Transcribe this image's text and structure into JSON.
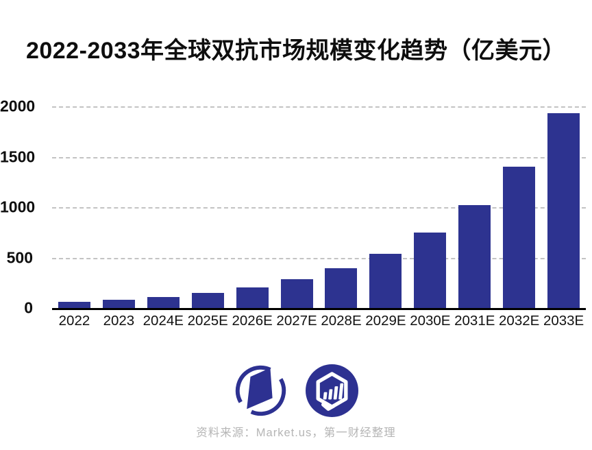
{
  "header": {
    "title": "2022-2033年全球双抗市场规模变化趋势（亿美元）"
  },
  "chart_data": {
    "type": "bar",
    "title": "2022-2033年全球双抗市场规模变化趋势（亿美元）",
    "unit": "亿美元",
    "categories": [
      "2022",
      "2023",
      "2024E",
      "2025E",
      "2026E",
      "2027E",
      "2028E",
      "2029E",
      "2030E",
      "2031E",
      "2032E",
      "2033E"
    ],
    "values": [
      63,
      85,
      112,
      152,
      205,
      285,
      395,
      540,
      745,
      1020,
      1400,
      1930
    ],
    "xlabel": "",
    "ylabel": "",
    "ylim": [
      0,
      2000
    ],
    "yticks": [
      0,
      500,
      1000,
      1500,
      2000
    ],
    "grid": "horizontal-dashed",
    "legend": false,
    "bar_color": "#2d3390",
    "gridline_color": "#c3c3c3",
    "axis_color": "#000000",
    "tick_label_color": "#0e0e0e"
  },
  "footer": {
    "logos": [
      {
        "name": "yicai-logo",
        "color": "#2d3191"
      },
      {
        "name": "yicai-data-logo",
        "color": "#2d3191"
      }
    ],
    "source_text": "资料来源：Market.us，第一财经整理",
    "source_color": "#b5b5b5"
  }
}
